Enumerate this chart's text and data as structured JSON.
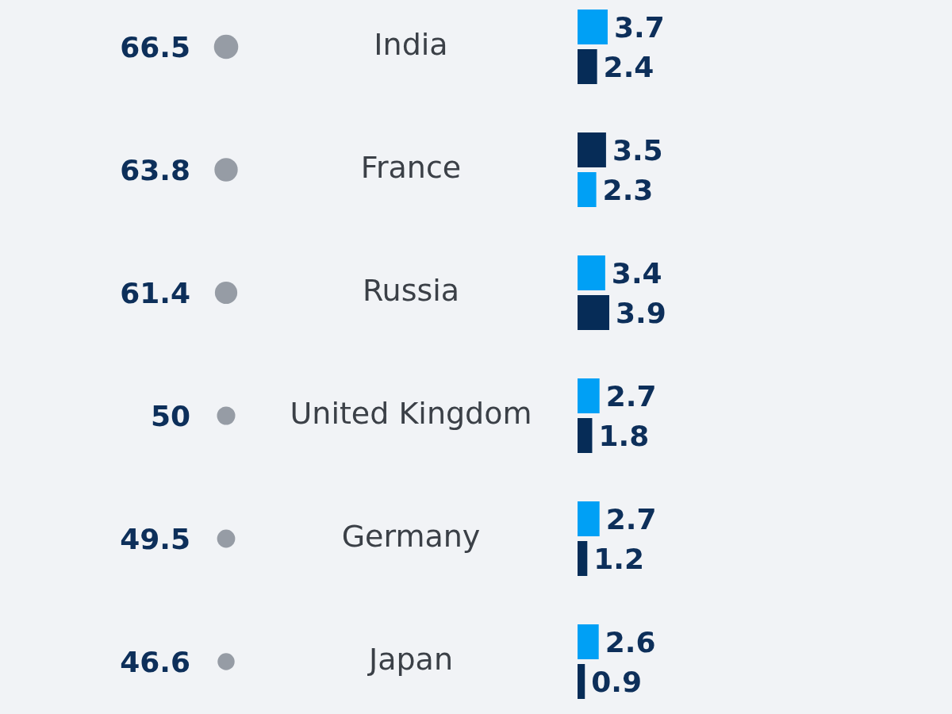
{
  "chart_data": [
    {
      "type": "other",
      "categories": [
        null,
        null,
        null,
        null,
        null,
        null
      ],
      "values": [
        66.5,
        63.8,
        61.4,
        50,
        49.5,
        46.6
      ],
      "color": "#969ca5",
      "data_labels": true
    },
    {
      "type": "bar",
      "orientation": "horizontal",
      "categories": [
        "India",
        "France",
        "Russia",
        "United Kingdom",
        "Germany",
        "Japan"
      ],
      "data_labels": true,
      "series": [
        {
          "values": [
            3.7,
            3.5,
            3.4,
            2.7,
            2.7,
            2.6
          ],
          "colors": [
            "#00a0f5",
            "#062c57",
            "#00a0f5",
            "#00a0f5",
            "#00a0f5",
            "#00a0f5"
          ]
        },
        {
          "values": [
            2.4,
            2.3,
            3.9,
            1.8,
            1.2,
            0.9
          ],
          "colors": [
            "#062c57",
            "#00a0f5",
            "#062c57",
            "#062c57",
            "#062c57",
            "#062c57"
          ]
        }
      ]
    }
  ]
}
